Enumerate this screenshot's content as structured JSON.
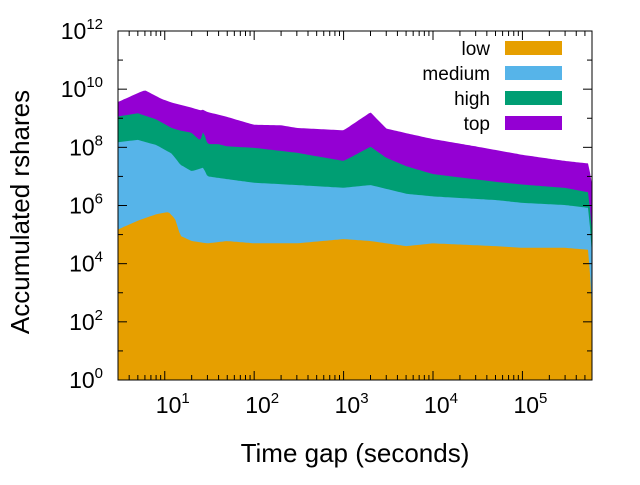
{
  "chart_data": {
    "type": "area",
    "stacked": true,
    "title": "",
    "xlabel": "Time gap (seconds)",
    "ylabel": "Accumulated rshares",
    "xscale": "log",
    "yscale": "log",
    "xlim": [
      3,
      600000
    ],
    "ylim": [
      1,
      1000000000000
    ],
    "x_ticks": [
      {
        "value": 10,
        "base": "10",
        "exp": "1"
      },
      {
        "value": 100,
        "base": "10",
        "exp": "2"
      },
      {
        "value": 1000,
        "base": "10",
        "exp": "3"
      },
      {
        "value": 10000,
        "base": "10",
        "exp": "4"
      },
      {
        "value": 100000,
        "base": "10",
        "exp": "5"
      }
    ],
    "y_ticks": [
      {
        "value": 1,
        "base": "10",
        "exp": "0"
      },
      {
        "value": 100,
        "base": "10",
        "exp": "2"
      },
      {
        "value": 10000,
        "base": "10",
        "exp": "4"
      },
      {
        "value": 1000000,
        "base": "10",
        "exp": "6"
      },
      {
        "value": 100000000,
        "base": "10",
        "exp": "8"
      },
      {
        "value": 10000000000,
        "base": "10",
        "exp": "10"
      },
      {
        "value": 1000000000000,
        "base": "10",
        "exp": "12"
      }
    ],
    "legend_position": "top-right",
    "series": [
      {
        "name": "low",
        "color": "#e69f00",
        "points": [
          [
            3,
            150000
          ],
          [
            5,
            300000
          ],
          [
            8,
            500000
          ],
          [
            11,
            600000
          ],
          [
            13,
            350000
          ],
          [
            15,
            90000
          ],
          [
            20,
            60000
          ],
          [
            30,
            50000
          ],
          [
            50,
            60000
          ],
          [
            100,
            50000
          ],
          [
            300,
            50000
          ],
          [
            1000,
            70000
          ],
          [
            2000,
            60000
          ],
          [
            5000,
            40000
          ],
          [
            10000,
            50000
          ],
          [
            50000,
            40000
          ],
          [
            100000,
            35000
          ],
          [
            300000,
            35000
          ],
          [
            550000,
            30000
          ],
          [
            600000,
            300
          ]
        ]
      },
      {
        "name": "medium",
        "color": "#56b4e9",
        "points": [
          [
            3,
            150000000
          ],
          [
            5,
            180000000
          ],
          [
            8,
            120000000
          ],
          [
            12,
            60000000
          ],
          [
            15,
            25000000
          ],
          [
            20,
            15000000
          ],
          [
            27,
            20000000
          ],
          [
            30,
            10000000
          ],
          [
            50,
            8000000
          ],
          [
            100,
            6000000
          ],
          [
            300,
            5000000
          ],
          [
            1000,
            4000000
          ],
          [
            2000,
            5000000
          ],
          [
            5000,
            2500000
          ],
          [
            10000,
            2000000
          ],
          [
            50000,
            1500000
          ],
          [
            100000,
            1200000
          ],
          [
            300000,
            1000000
          ],
          [
            550000,
            800000
          ],
          [
            600000,
            20000
          ]
        ]
      },
      {
        "name": "high",
        "color": "#009e73",
        "points": [
          [
            3,
            1000000000
          ],
          [
            5,
            1300000000
          ],
          [
            8,
            800000000
          ],
          [
            12,
            400000000
          ],
          [
            20,
            300000000
          ],
          [
            25,
            150000000
          ],
          [
            27,
            350000000
          ],
          [
            30,
            120000000
          ],
          [
            40,
            120000000
          ],
          [
            50,
            100000000
          ],
          [
            100,
            90000000
          ],
          [
            300,
            60000000
          ],
          [
            1000,
            30000000
          ],
          [
            2000,
            100000000
          ],
          [
            3000,
            40000000
          ],
          [
            5000,
            20000000
          ],
          [
            10000,
            10000000
          ],
          [
            50000,
            5000000
          ],
          [
            100000,
            4000000
          ],
          [
            300000,
            3000000
          ],
          [
            550000,
            2000000
          ],
          [
            600000,
            100000
          ]
        ]
      },
      {
        "name": "top",
        "color": "#9400d3",
        "points": [
          [
            3,
            2500000000
          ],
          [
            6,
            8000000000
          ],
          [
            9,
            4000000000
          ],
          [
            12,
            3000000000
          ],
          [
            20,
            2000000000
          ],
          [
            30,
            1500000000
          ],
          [
            50,
            1000000000
          ],
          [
            100,
            500000000
          ],
          [
            200,
            500000000
          ],
          [
            300,
            400000000
          ],
          [
            1000,
            350000000
          ],
          [
            2000,
            1500000000
          ],
          [
            3000,
            400000000
          ],
          [
            10000,
            180000000
          ],
          [
            30000,
            100000000
          ],
          [
            100000,
            50000000
          ],
          [
            300000,
            30000000
          ],
          [
            550000,
            25000000
          ],
          [
            600000,
            5000000
          ]
        ]
      }
    ]
  }
}
